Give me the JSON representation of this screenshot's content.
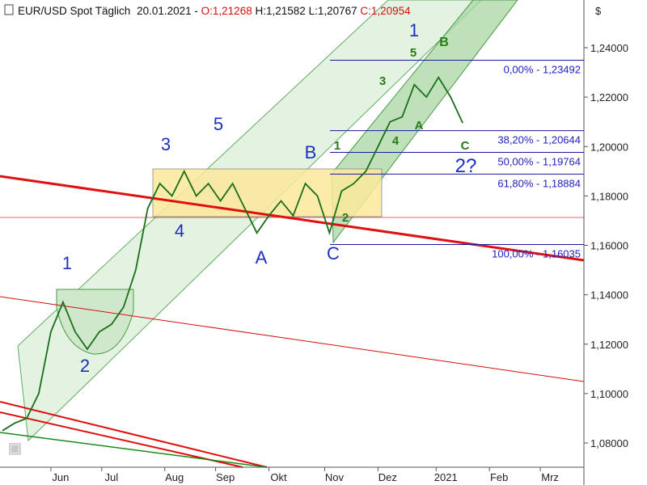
{
  "chart_data": {
    "type": "line",
    "header": [
      "EUR/USD Spot Täglich",
      "20.01.2021 -",
      "O:1,21268",
      "H:1,21582",
      "L:1,20767",
      "C:1,20954"
    ],
    "y_axis_unit": "$",
    "x": [
      0,
      5,
      10,
      15,
      20,
      25,
      30,
      35,
      40,
      45,
      50,
      55,
      60,
      65,
      70,
      75,
      80,
      85,
      90,
      95,
      100,
      105,
      110,
      115,
      120,
      125,
      130,
      135,
      140,
      145,
      150,
      155,
      160,
      165,
      170,
      175,
      180,
      185,
      190
    ],
    "values": [
      1.085,
      1.088,
      1.09,
      1.1,
      1.125,
      1.137,
      1.125,
      1.118,
      1.125,
      1.128,
      1.135,
      1.15,
      1.175,
      1.185,
      1.18,
      1.19,
      1.18,
      1.185,
      1.178,
      1.185,
      1.175,
      1.165,
      1.172,
      1.178,
      1.172,
      1.185,
      1.18,
      1.165,
      1.182,
      1.185,
      1.19,
      1.2,
      1.21,
      1.212,
      1.225,
      1.22,
      1.228,
      1.22,
      1.2095
    ],
    "color": "#1a6e1a",
    "xlim": [
      -1,
      240
    ],
    "xticks": [
      {
        "value": 20,
        "label": "Jun"
      },
      {
        "value": 41,
        "label": "Jul"
      },
      {
        "value": 67,
        "label": "Aug"
      },
      {
        "value": 88,
        "label": "Sep"
      },
      {
        "value": 110,
        "label": "Okt"
      },
      {
        "value": 133,
        "label": "Nov"
      },
      {
        "value": 155,
        "label": "Dez"
      },
      {
        "value": 179,
        "label": "2021"
      },
      {
        "value": 201,
        "label": "Feb"
      },
      {
        "value": 222,
        "label": "Mrz"
      }
    ],
    "ylim": [
      1.0702,
      1.2593
    ],
    "yticks": [
      {
        "value": 1.08,
        "label": "1,08000"
      },
      {
        "value": 1.1,
        "label": "1,10000"
      },
      {
        "value": 1.12,
        "label": "1,12000"
      },
      {
        "value": 1.14,
        "label": "1,14000"
      },
      {
        "value": 1.16,
        "label": "1,16000"
      },
      {
        "value": 1.18,
        "label": "1,18000"
      },
      {
        "value": 1.2,
        "label": "1,20000"
      },
      {
        "value": 1.22,
        "label": "1,22000"
      },
      {
        "value": 1.24,
        "label": "1,24000"
      }
    ],
    "fib_levels": [
      {
        "value": 1.23492,
        "label": "0,00% - 1,23492"
      },
      {
        "value": 1.20644,
        "label": "38,20% - 1,20644"
      },
      {
        "value": 1.19764,
        "label": "50,00% - 1,19764"
      },
      {
        "value": 1.18884,
        "label": "61,80% - 1,18884"
      },
      {
        "value": 1.16035,
        "label": "100,00% - 1,16035"
      }
    ],
    "annotations": [
      "1",
      "2",
      "3",
      "5",
      "4",
      "A",
      "B",
      "C",
      "1",
      "2?",
      "B",
      "5",
      "3",
      "1",
      "4",
      "A",
      "C",
      "2"
    ]
  }
}
